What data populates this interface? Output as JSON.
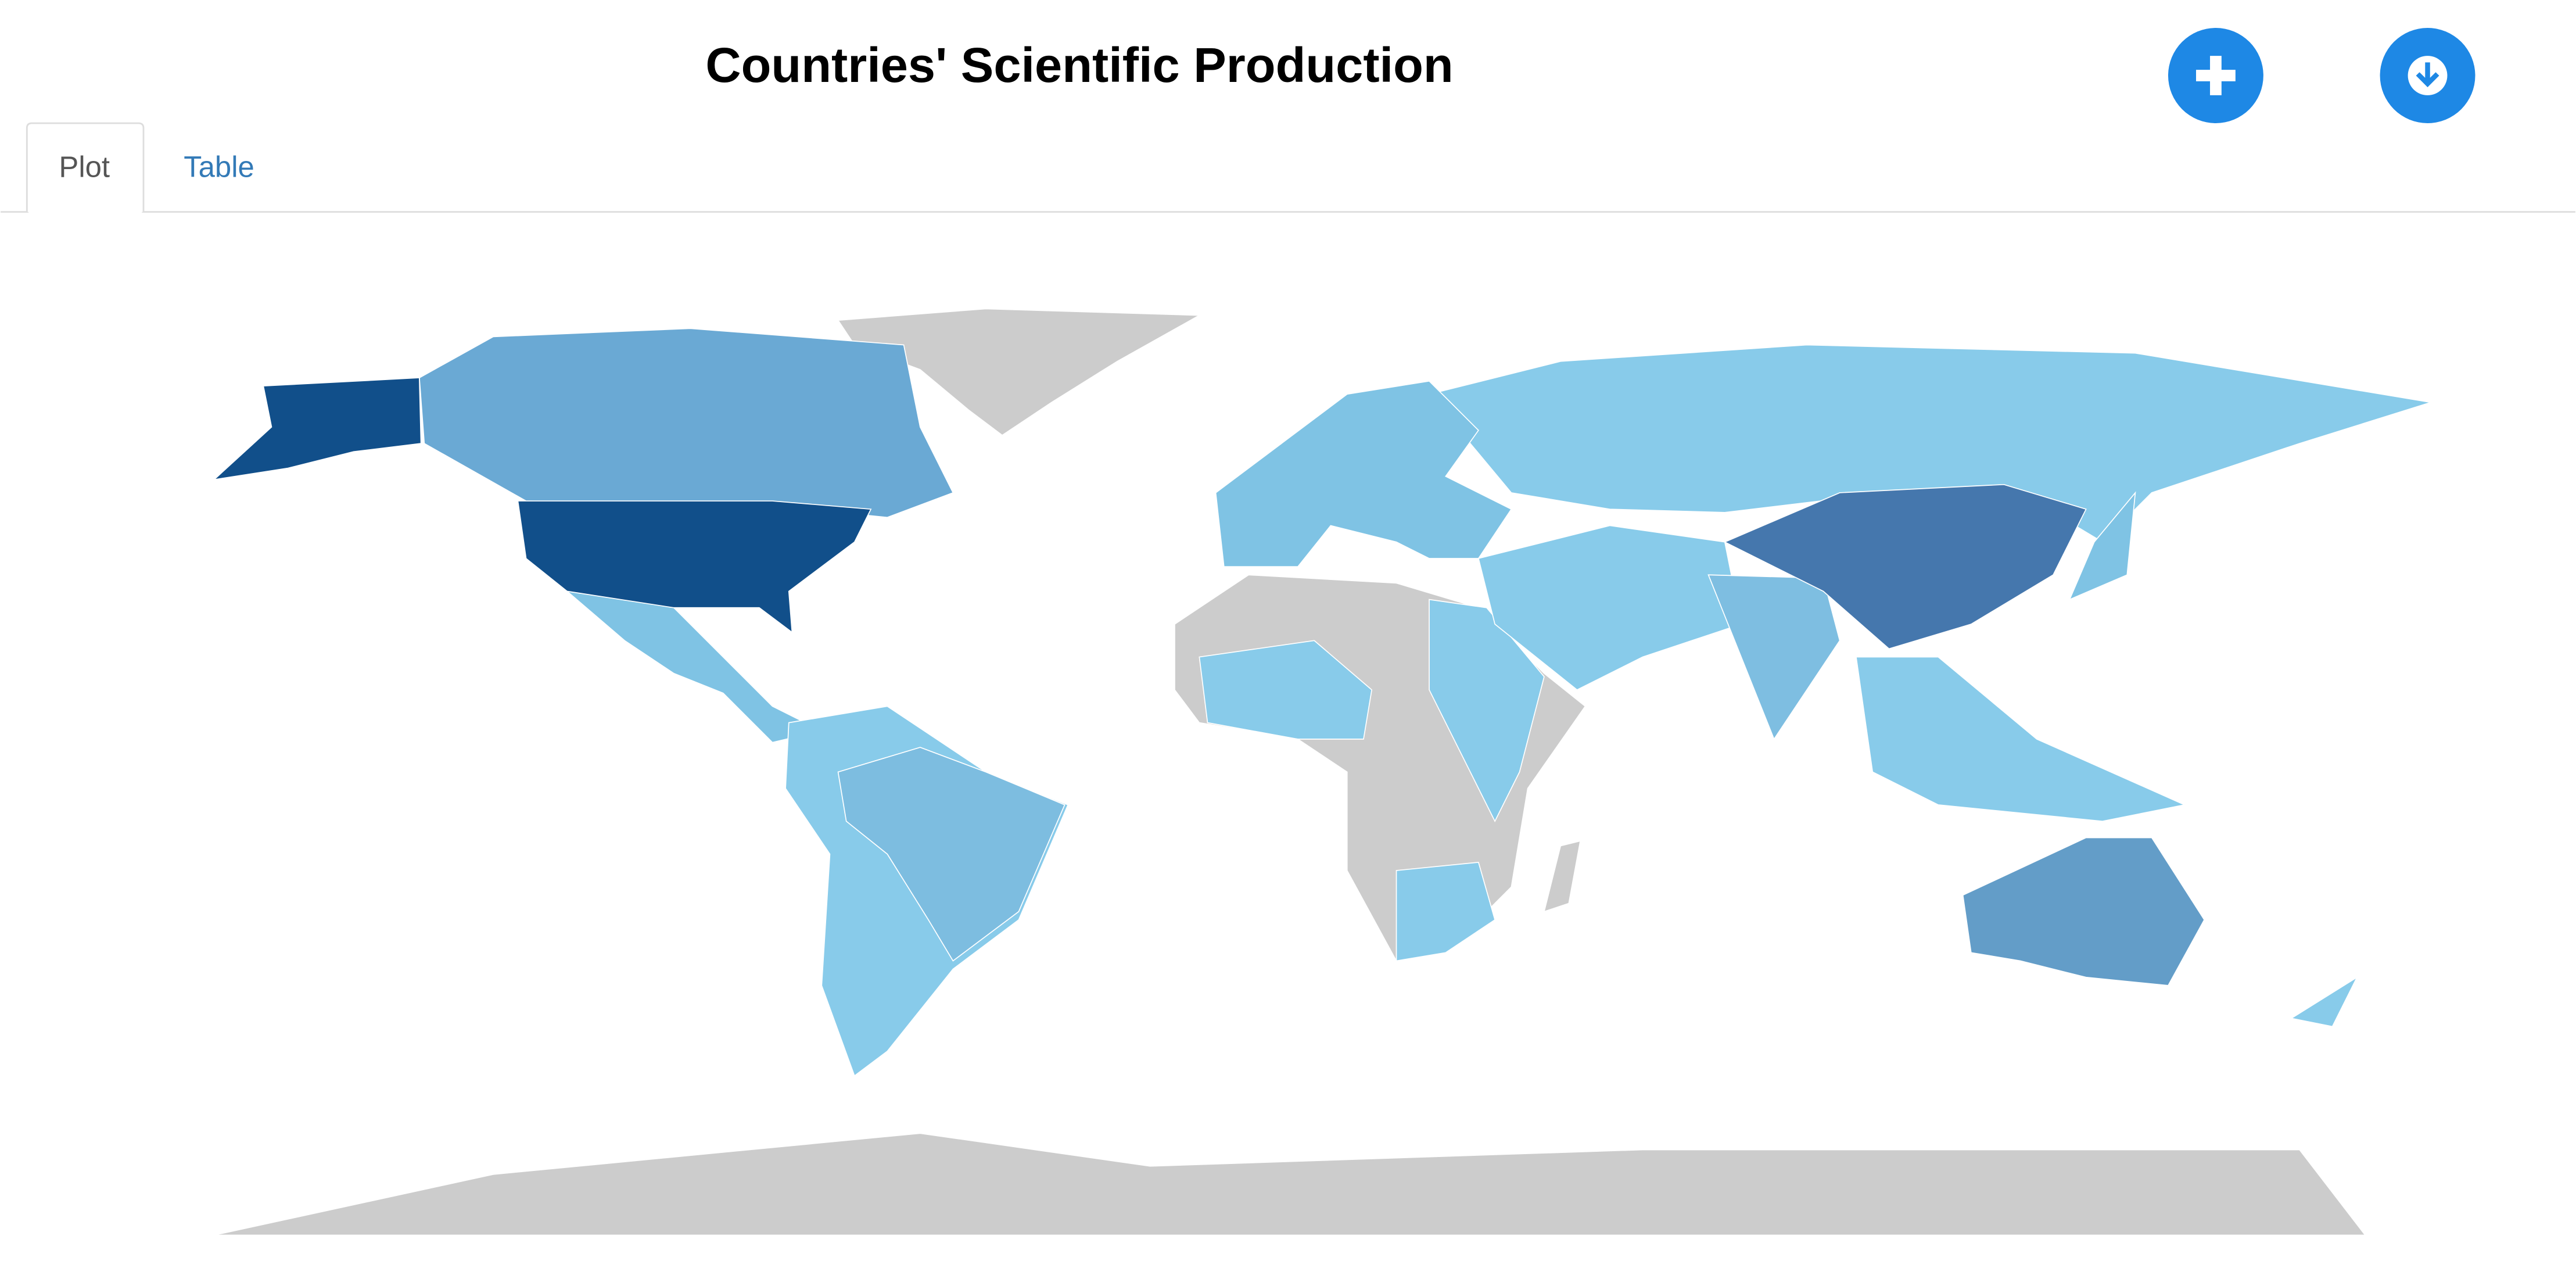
{
  "header": {
    "title": "Countries' Scientific Production"
  },
  "tabs": [
    "Plot",
    "Table"
  ]
}
